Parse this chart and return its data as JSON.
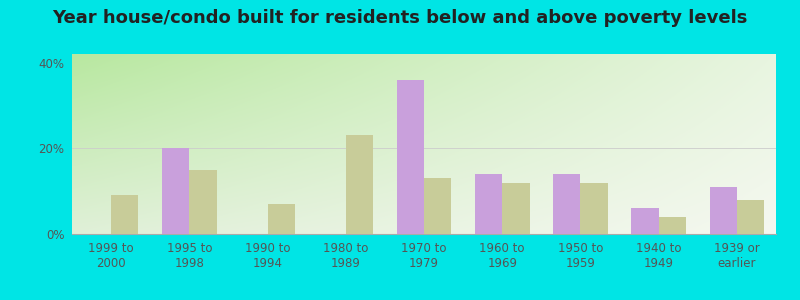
{
  "title": "Year house/condo built for residents below and above poverty levels",
  "categories": [
    "1999 to\n2000",
    "1995 to\n1998",
    "1990 to\n1994",
    "1980 to\n1989",
    "1970 to\n1979",
    "1960 to\n1969",
    "1950 to\n1959",
    "1940 to\n1949",
    "1939 or\nearlier"
  ],
  "below_poverty": [
    0,
    20,
    0,
    0,
    36,
    14,
    14,
    6,
    11
  ],
  "above_poverty": [
    9,
    15,
    7,
    23,
    13,
    12,
    12,
    4,
    8
  ],
  "below_color": "#c9a0dc",
  "above_color": "#c8cc99",
  "ylim": [
    0,
    42
  ],
  "yticks": [
    0,
    20,
    40
  ],
  "ytick_labels": [
    "0%",
    "20%",
    "40%"
  ],
  "bg_color_topleft": "#b8e8a0",
  "bg_color_topright": "#e8f5e0",
  "bg_color_bottomleft": "#e8f5d8",
  "bg_color_bottomright": "#f8f8f0",
  "outer_bg": "#00e5e5",
  "bar_width": 0.35,
  "title_fontsize": 13,
  "tick_fontsize": 8.5,
  "legend_fontsize": 9
}
